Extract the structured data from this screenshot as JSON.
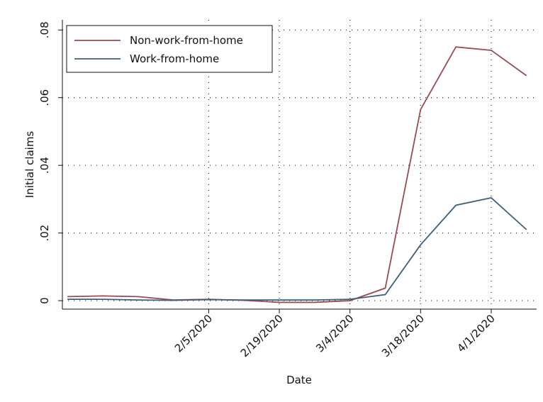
{
  "chart_data": {
    "type": "line",
    "x_label": "Date",
    "y_label": "Initial claims",
    "x": [
      "2020-01-08",
      "2020-01-15",
      "2020-01-22",
      "2020-01-29",
      "2020-02-05",
      "2020-02-12",
      "2020-02-19",
      "2020-02-26",
      "2020-03-04",
      "2020-03-11",
      "2020-03-18",
      "2020-03-25",
      "2020-04-01",
      "2020-04-08"
    ],
    "series": [
      {
        "name": "Non-work-from-home",
        "color": "#9b4a51",
        "values": [
          0.0012,
          0.0014,
          0.0012,
          0.0002,
          0.0004,
          0.0001,
          -0.0005,
          -0.0005,
          0.0,
          0.0037,
          0.0565,
          0.075,
          0.074,
          0.0665
        ]
      },
      {
        "name": "Work-from-home",
        "color": "#3d5f7a",
        "values": [
          0.0004,
          0.0004,
          0.0002,
          0.0001,
          0.0003,
          0.0002,
          0.0002,
          0.0002,
          0.0004,
          0.0018,
          0.0165,
          0.0282,
          0.0304,
          0.021
        ]
      }
    ],
    "xlim": [
      "2020-01-07",
      "2020-04-10"
    ],
    "xticks": [
      {
        "value": "2020-02-05",
        "label": "2/5/2020"
      },
      {
        "value": "2020-02-19",
        "label": "2/19/2020"
      },
      {
        "value": "2020-03-04",
        "label": "3/4/2020"
      },
      {
        "value": "2020-03-18",
        "label": "3/18/2020"
      },
      {
        "value": "2020-04-01",
        "label": "4/1/2020"
      }
    ],
    "ylim": [
      -0.0025,
      0.083
    ],
    "yticks": [
      0,
      {
        "value": 0.02,
        "label": ".02"
      },
      {
        "value": 0.04,
        "label": ".04"
      },
      {
        "value": 0.06,
        "label": ".06"
      },
      {
        "value": 0.08,
        "label": ".08"
      }
    ],
    "grid": true,
    "legend_position": "upper-left"
  }
}
